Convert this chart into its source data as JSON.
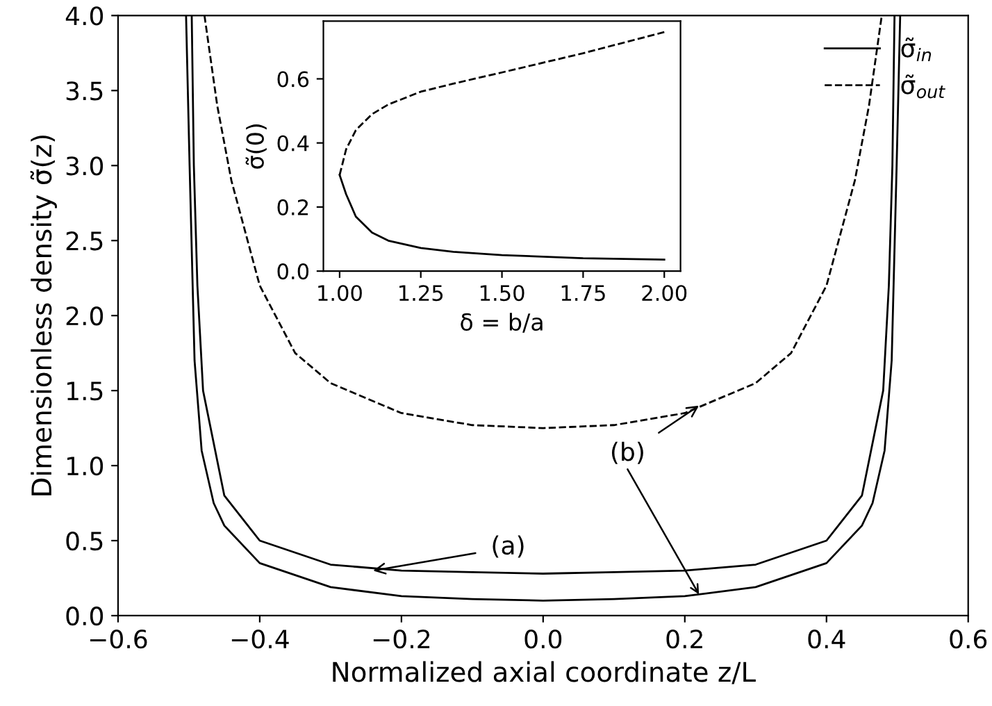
{
  "chart_data": [
    {
      "type": "line",
      "xlabel": "Normalized axial coordinate z/L",
      "ylabel": "Dimensionless density σ̃(z)",
      "xlim": [
        -0.6,
        0.6
      ],
      "ylim": [
        0,
        4
      ],
      "xticks": [
        {
          "value": -0.6,
          "label": "−0.6"
        },
        {
          "value": -0.4,
          "label": "−0.4"
        },
        {
          "value": -0.2,
          "label": "−0.2"
        },
        {
          "value": 0,
          "label": "0.0"
        },
        0.2,
        0.4,
        0.6
      ],
      "yticks": [
        {
          "value": 0,
          "label": "0.0"
        },
        0.5,
        {
          "value": 1,
          "label": "1.0"
        },
        1.5,
        {
          "value": 2,
          "label": "2.0"
        },
        2.5,
        {
          "value": 3,
          "label": "3.0"
        },
        3.5,
        {
          "value": 4,
          "label": "4.0"
        }
      ],
      "grid": false,
      "legend": "top right",
      "marker": "none",
      "series": [
        {
          "color": "#000000",
          "line_style": "solid",
          "x": [
            -0.496,
            -0.493,
            -0.488,
            -0.48,
            -0.45,
            -0.4,
            -0.3,
            -0.2,
            -0.1,
            0,
            0.1,
            0.2,
            0.3,
            0.4,
            0.45,
            0.48,
            0.488,
            0.493,
            0.496
          ],
          "values": [
            4.0,
            3.0,
            2.2,
            1.5,
            0.8,
            0.5,
            0.34,
            0.3,
            0.29,
            0.28,
            0.29,
            0.3,
            0.34,
            0.5,
            0.8,
            1.5,
            2.2,
            3.0,
            4.0
          ]
        },
        {
          "name": "σ̃$_{in}$",
          "color": "#000000",
          "line_style": "solid",
          "x": [
            -0.504,
            -0.499,
            -0.492,
            -0.482,
            -0.465,
            -0.45,
            -0.4,
            -0.3,
            -0.2,
            -0.1,
            0,
            0.1,
            0.2,
            0.3,
            0.4,
            0.45,
            0.465,
            0.482,
            0.492,
            0.499,
            0.504
          ],
          "values": [
            4.0,
            3.0,
            1.7,
            1.1,
            0.75,
            0.6,
            0.35,
            0.19,
            0.13,
            0.11,
            0.1,
            0.11,
            0.13,
            0.19,
            0.35,
            0.6,
            0.75,
            1.1,
            1.7,
            3.0,
            4.0
          ]
        },
        {
          "name": "σ̃$_{out}$",
          "color": "#000000",
          "line_style": "dashed",
          "x": [
            -0.478,
            -0.46,
            -0.44,
            -0.4,
            -0.35,
            -0.3,
            -0.2,
            -0.1,
            0,
            0.1,
            0.2,
            0.3,
            0.35,
            0.4,
            0.44,
            0.46,
            0.478
          ],
          "values": [
            4.0,
            3.4,
            2.9,
            2.2,
            1.75,
            1.55,
            1.35,
            1.27,
            1.25,
            1.27,
            1.35,
            1.55,
            1.75,
            2.2,
            2.9,
            3.4,
            4.0
          ]
        }
      ],
      "annotations": [
        {
          "text": "(a)",
          "x": -0.24,
          "y": 0.3
        },
        {
          "text": "(b)",
          "x": 0.22,
          "y": 1.4
        }
      ]
    },
    {
      "type": "line",
      "xlabel": "δ = b/a",
      "ylabel": "σ̃(0)",
      "xlim": [
        0.95,
        2.05
      ],
      "ylim": [
        0,
        0.78
      ],
      "xticks": [
        {
          "value": 1,
          "label": "1.00"
        },
        1.25,
        {
          "value": 1.5,
          "label": "1.50"
        },
        1.75,
        {
          "value": 2,
          "label": "2.00"
        }
      ],
      "yticks": [
        {
          "value": 0,
          "label": "0.0"
        },
        0.2,
        0.4,
        0.6
      ],
      "grid": false,
      "marker": "none",
      "series": [
        {
          "color": "#000000",
          "line_style": "solid",
          "x": [
            1.0,
            1.02,
            1.05,
            1.1,
            1.15,
            1.25,
            1.35,
            1.5,
            1.75,
            2.0
          ],
          "values": [
            0.3,
            0.24,
            0.17,
            0.12,
            0.095,
            0.072,
            0.06,
            0.05,
            0.04,
            0.036
          ]
        },
        {
          "color": "#000000",
          "line_style": "dashed",
          "x": [
            1.0,
            1.02,
            1.05,
            1.1,
            1.15,
            1.25,
            1.35,
            1.5,
            1.75,
            2.0
          ],
          "values": [
            0.3,
            0.38,
            0.44,
            0.49,
            0.52,
            0.56,
            0.585,
            0.62,
            0.68,
            0.746
          ]
        }
      ]
    }
  ]
}
